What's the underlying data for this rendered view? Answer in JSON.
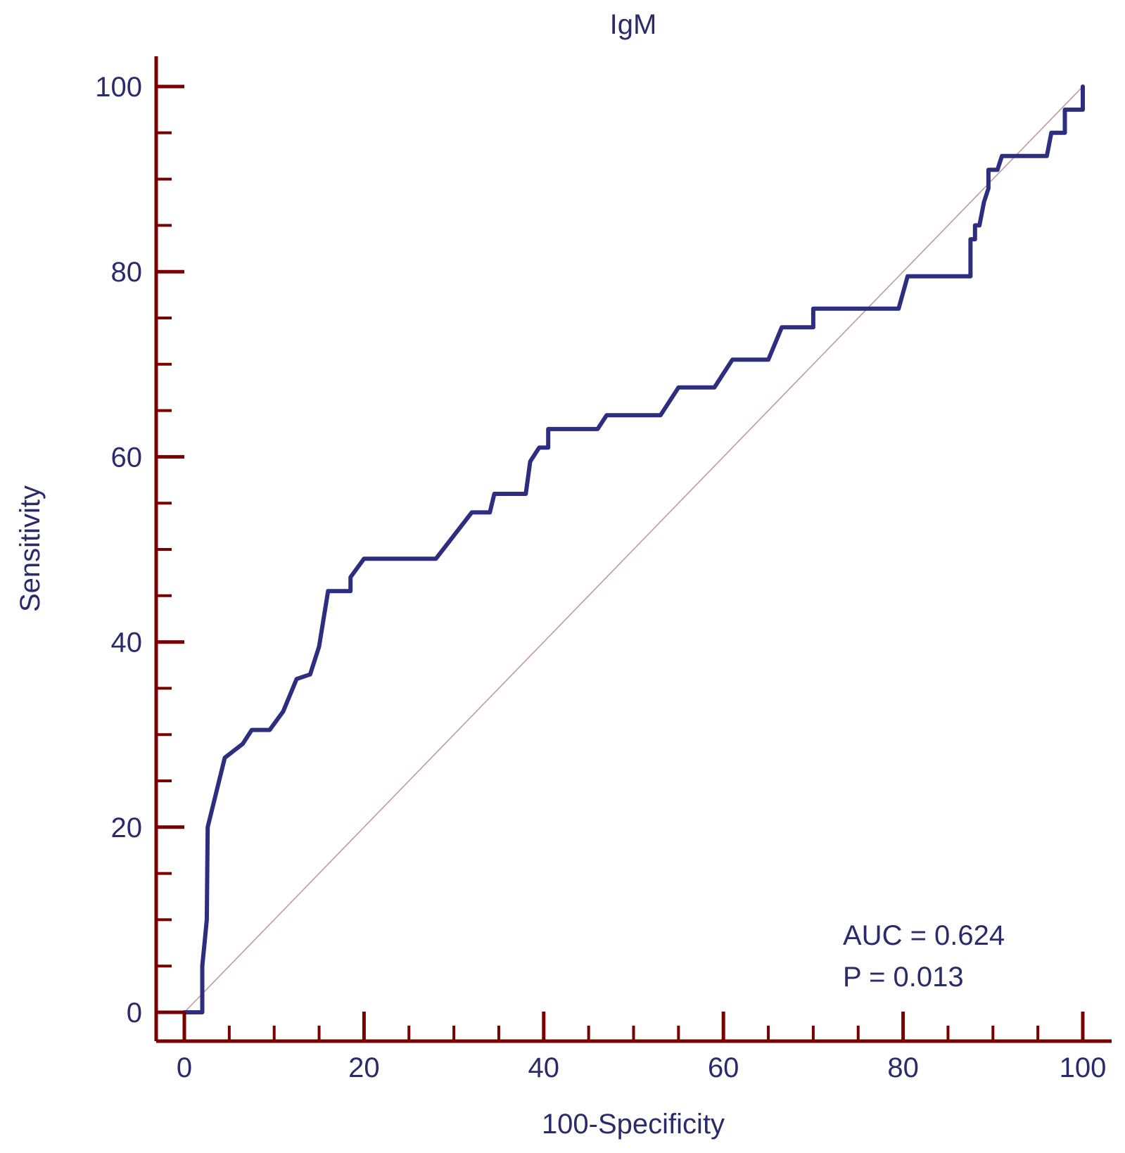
{
  "chart_data": {
    "type": "line",
    "title": "IgM",
    "xlabel": "100-Specificity",
    "ylabel": "Sensitivity",
    "xlim": [
      0,
      100
    ],
    "ylim": [
      0,
      100
    ],
    "x_ticks": [
      0,
      20,
      40,
      60,
      80,
      100
    ],
    "y_ticks": [
      0,
      20,
      40,
      60,
      80,
      100
    ],
    "x_tick_labels": [
      "0",
      "20",
      "40",
      "60",
      "80",
      "100"
    ],
    "y_tick_labels": [
      "0",
      "20",
      "40",
      "60",
      "80",
      "100"
    ],
    "x_minor_step": 5,
    "y_minor_step": 5,
    "grid": false,
    "series": [
      {
        "name": "ROC curve",
        "color": "#2e2e80",
        "x": [
          0,
          2,
          2,
          2.3,
          2.5,
          2.6,
          4.5,
          6.5,
          7.5,
          9.5,
          11,
          12.5,
          14,
          15,
          16,
          18.5,
          18.5,
          20,
          28,
          32,
          34,
          34.5,
          38,
          38.5,
          39.5,
          40.5,
          40.5,
          46,
          47,
          53,
          55,
          59,
          61,
          65,
          66.5,
          70,
          70,
          79.5,
          80.5,
          87.5,
          87.5,
          88,
          88,
          88.5,
          89,
          89.5,
          89.5,
          90.5,
          91,
          96,
          96.5,
          97,
          98,
          98,
          100,
          100
        ],
        "y": [
          0,
          0,
          5,
          8,
          10,
          20,
          27.5,
          29,
          30.5,
          30.5,
          32.5,
          36,
          36.5,
          39.5,
          45.5,
          45.5,
          47,
          49,
          49,
          54,
          54,
          56,
          56,
          59.5,
          61,
          61,
          63,
          63,
          64.5,
          64.5,
          67.5,
          67.5,
          70.5,
          70.5,
          74,
          74,
          76,
          76,
          79.5,
          79.5,
          83.5,
          83.5,
          85,
          85,
          87.5,
          89,
          91,
          91,
          92.5,
          92.5,
          95,
          95,
          95,
          97.5,
          97.5,
          100
        ]
      },
      {
        "name": "Reference line",
        "color": "#c49a9a",
        "x": [
          0,
          100
        ],
        "y": [
          0,
          100
        ]
      }
    ],
    "annotations": [
      "AUC = 0.624",
      "P = 0.013"
    ],
    "annotation_position": "bottom-right",
    "axis_color": "#7a0000",
    "text_color": "#2b2b6b"
  }
}
